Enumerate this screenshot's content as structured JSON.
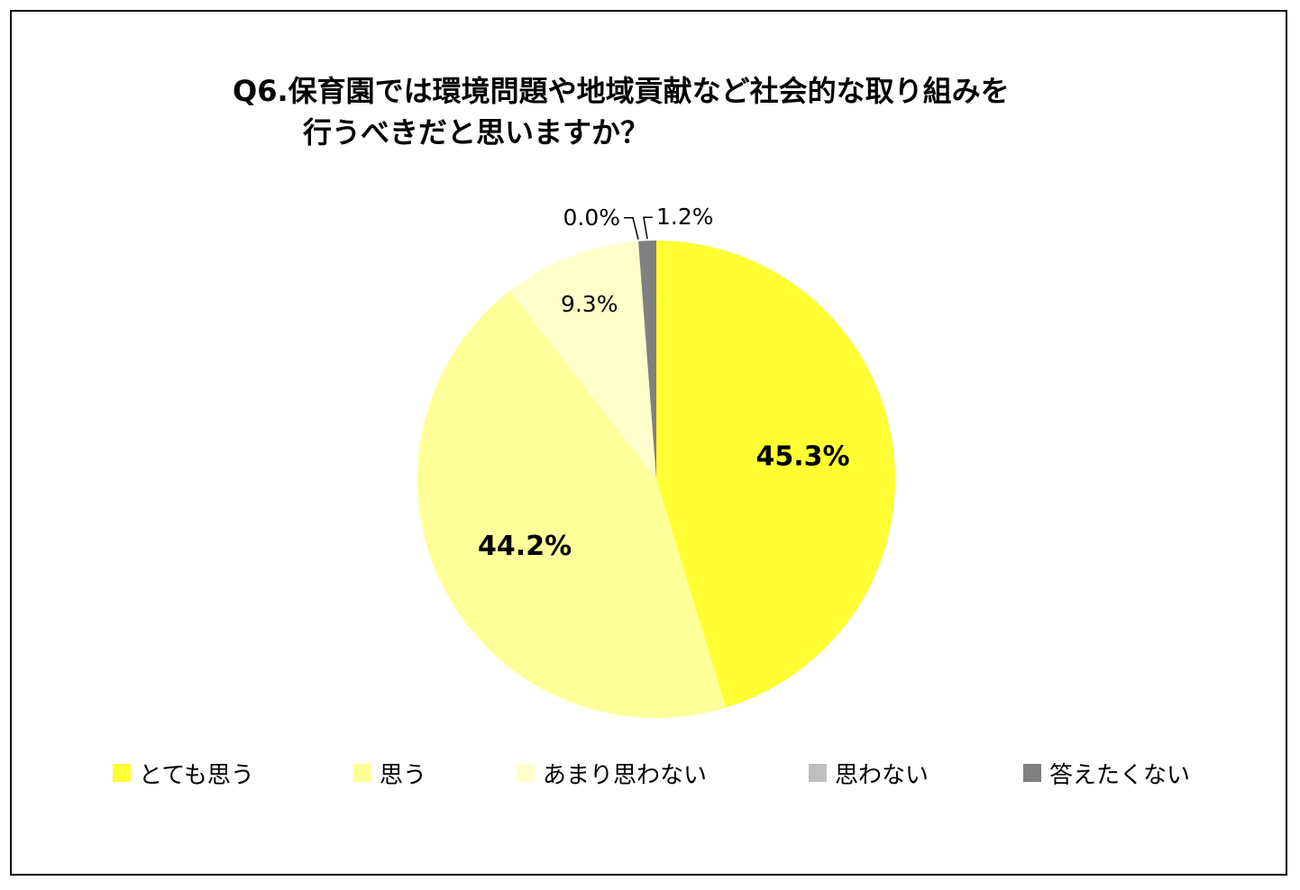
{
  "chart_data": {
    "type": "pie",
    "title_lines": [
      "Q6.保育園では環境問題や地域貢献など社会的な取り組みを",
      "行うべきだと思いますか？"
    ],
    "start_angle_deg": 0,
    "direction": "clockwise",
    "slices": [
      {
        "label": "とても思う",
        "value": 45.3,
        "value_label": "45.3%",
        "color": "#FFFF33",
        "label_style": "bold-inside"
      },
      {
        "label": "思う",
        "value": 44.2,
        "value_label": "44.2%",
        "color": "#FFFF99",
        "label_style": "bold-inside"
      },
      {
        "label": "あまり思わない",
        "value": 9.3,
        "value_label": "9.3%",
        "color": "#FFFFCC",
        "label_style": "inside"
      },
      {
        "label": "思わない",
        "value": 0.0,
        "value_label": "0.0%",
        "color": "#BFBFBF",
        "label_style": "leader-left"
      },
      {
        "label": "答えたくない",
        "value": 1.2,
        "value_label": "1.2%",
        "color": "#808080",
        "label_style": "leader-right"
      }
    ],
    "legend_position": "bottom"
  }
}
